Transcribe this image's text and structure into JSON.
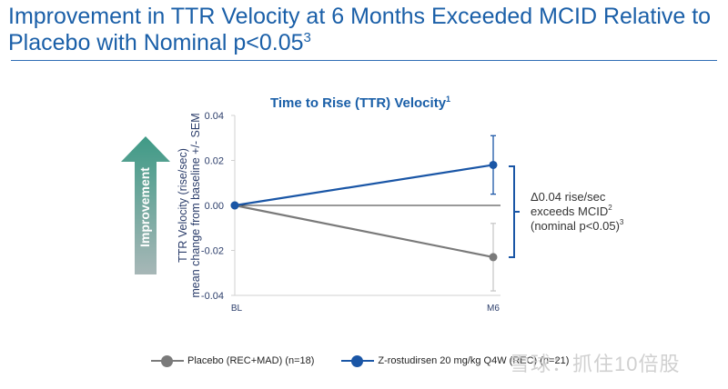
{
  "slide": {
    "title_main": "Improvement in TTR Velocity at 6 Months Exceeded MCID Relative to Placebo with Nominal p<0.05",
    "title_superscript": "3"
  },
  "improvement_arrow": {
    "label": "Improvement",
    "color_top": "#3f9a86",
    "color_bottom": "#a7b7b7"
  },
  "annotation": {
    "line1": "Δ0.04 rise/sec",
    "line2": "exceeds MCID",
    "line2_sup": "2",
    "line3": "(nominal p<0.05)",
    "line3_sup": "3"
  },
  "watermark": "雪球：抓住10倍股",
  "chart_data": {
    "type": "line",
    "title": "Time to Rise (TTR) Velocity",
    "title_superscript": "1",
    "xlabel": "",
    "ylabel": "TTR Velocity (rise/sec)\nmean change from baseline +/- SEM",
    "ylabel_lines": [
      "TTR Velocity (rise/sec)",
      "mean change from baseline +/- SEM"
    ],
    "x": [
      "BL",
      "M6"
    ],
    "ylim": [
      -0.04,
      0.04
    ],
    "yticks": [
      0.04,
      0.02,
      0.0,
      -0.02,
      -0.04
    ],
    "ytick_labels": [
      "0.04",
      "0.02",
      "0.00",
      "-0.02",
      "-0.04"
    ],
    "grid": false,
    "reference_line": 0.0,
    "legend_position": "bottom",
    "series": [
      {
        "name": "Placebo (REC+MAD) (n=18)",
        "color": "#7a7a7a",
        "errorbar_color": "#c8c8c8",
        "values": [
          0.0,
          -0.023
        ],
        "error_lower": [
          null,
          -0.038
        ],
        "error_upper": [
          null,
          -0.008
        ]
      },
      {
        "name": "Z-rostudirsen 20 mg/kg Q4W (REC) (n=21)",
        "color": "#1a56a6",
        "errorbar_color": "#1a56a6",
        "values": [
          0.0,
          0.018
        ],
        "error_lower": [
          null,
          0.005
        ],
        "error_upper": [
          null,
          0.031
        ]
      }
    ]
  }
}
